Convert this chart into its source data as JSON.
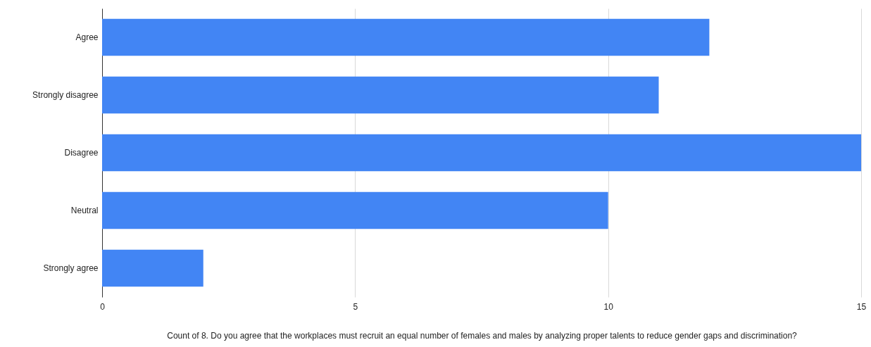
{
  "chart_data": {
    "type": "bar",
    "orientation": "horizontal",
    "xlabel": "Count of 8. Do you agree that the workplaces must recruit an equal number of females and males by analyzing proper talents to reduce gender gaps and discrimination?",
    "categories": [
      "Agree",
      "Strongly disagree",
      "Disagree",
      "Neutral",
      "Strongly agree"
    ],
    "values": [
      12,
      11,
      15,
      10,
      2
    ],
    "color": "#4285f4",
    "xlim": [
      0,
      15
    ],
    "xticks": [
      0,
      5,
      10,
      15
    ],
    "grid": "x"
  }
}
